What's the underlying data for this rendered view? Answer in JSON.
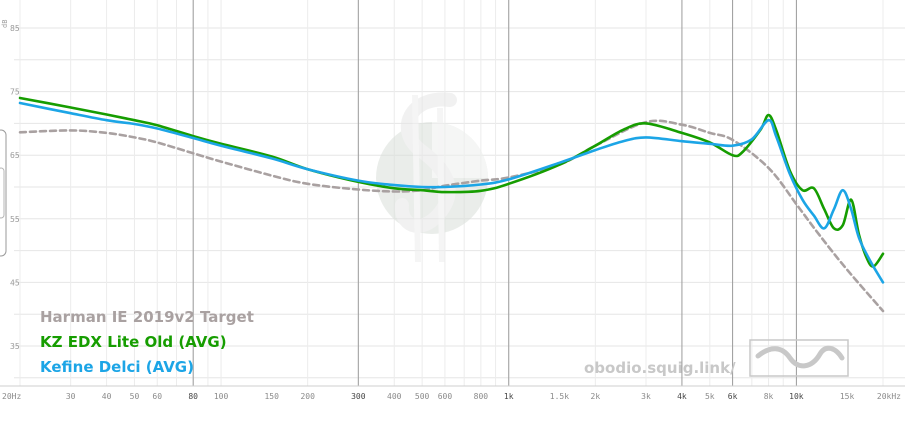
{
  "chart_data": {
    "type": "line",
    "ylabel": "dB",
    "ylim": [
      30,
      90
    ],
    "xlim": [
      20,
      20000
    ],
    "x_scale": "log",
    "grid": true,
    "legend_position": "bottom-left",
    "y_ticks": [
      35,
      45,
      55,
      65,
      75,
      85
    ],
    "x_ticks": [
      {
        "value": 20,
        "label": "20Hz",
        "major": false
      },
      {
        "value": 30,
        "label": "30",
        "major": false
      },
      {
        "value": 40,
        "label": "40",
        "major": false
      },
      {
        "value": 50,
        "label": "50",
        "major": false
      },
      {
        "value": 60,
        "label": "60",
        "major": false
      },
      {
        "value": 80,
        "label": "80",
        "major": true
      },
      {
        "value": 100,
        "label": "100",
        "major": false
      },
      {
        "value": 150,
        "label": "150",
        "major": false
      },
      {
        "value": 200,
        "label": "200",
        "major": false
      },
      {
        "value": 300,
        "label": "300",
        "major": true
      },
      {
        "value": 400,
        "label": "400",
        "major": false
      },
      {
        "value": 500,
        "label": "500",
        "major": false
      },
      {
        "value": 600,
        "label": "600",
        "major": false
      },
      {
        "value": 800,
        "label": "800",
        "major": false
      },
      {
        "value": 1000,
        "label": "1k",
        "major": true
      },
      {
        "value": 1500,
        "label": "1.5k",
        "major": false
      },
      {
        "value": 2000,
        "label": "2k",
        "major": false
      },
      {
        "value": 3000,
        "label": "3k",
        "major": false
      },
      {
        "value": 4000,
        "label": "4k",
        "major": true
      },
      {
        "value": 5000,
        "label": "5k",
        "major": false
      },
      {
        "value": 6000,
        "label": "6k",
        "major": true
      },
      {
        "value": 8000,
        "label": "8k",
        "major": false
      },
      {
        "value": 10000,
        "label": "10k",
        "major": true
      },
      {
        "value": 15000,
        "label": "15k",
        "major": false
      },
      {
        "value": 20000,
        "label": "20kHz",
        "major": false
      }
    ],
    "series": [
      {
        "name": "Harman IE 2019v2 Target",
        "color": "#a9a1a1",
        "dashed": true,
        "points": [
          [
            20,
            68.6
          ],
          [
            30,
            68.9
          ],
          [
            40,
            68.5
          ],
          [
            50,
            67.8
          ],
          [
            60,
            67
          ],
          [
            80,
            65.3
          ],
          [
            100,
            64
          ],
          [
            150,
            61.8
          ],
          [
            200,
            60.5
          ],
          [
            300,
            59.6
          ],
          [
            400,
            59.3
          ],
          [
            500,
            59.5
          ],
          [
            600,
            60.2
          ],
          [
            800,
            61
          ],
          [
            1000,
            61.5
          ],
          [
            1500,
            63.5
          ],
          [
            2000,
            66.5
          ],
          [
            3000,
            70.2
          ],
          [
            4000,
            69.8
          ],
          [
            5000,
            68.5
          ],
          [
            6000,
            67.4
          ],
          [
            8000,
            63
          ],
          [
            10000,
            57.3
          ],
          [
            12000,
            52.5
          ],
          [
            15000,
            47
          ],
          [
            20000,
            40.5
          ]
        ]
      },
      {
        "name": "KZ EDX Lite Old (AVG)",
        "color": "#169d00",
        "dashed": false,
        "points": [
          [
            20,
            74
          ],
          [
            30,
            72.5
          ],
          [
            40,
            71.4
          ],
          [
            50,
            70.5
          ],
          [
            60,
            69.7
          ],
          [
            80,
            68
          ],
          [
            100,
            66.8
          ],
          [
            150,
            64.8
          ],
          [
            200,
            62.8
          ],
          [
            300,
            60.8
          ],
          [
            400,
            59.8
          ],
          [
            500,
            59.5
          ],
          [
            600,
            59.2
          ],
          [
            800,
            59.4
          ],
          [
            1000,
            60.5
          ],
          [
            1500,
            63.5
          ],
          [
            2000,
            66.5
          ],
          [
            2500,
            69
          ],
          [
            3000,
            70
          ],
          [
            4000,
            68.5
          ],
          [
            5000,
            67
          ],
          [
            6000,
            65
          ],
          [
            6500,
            65.5
          ],
          [
            7500,
            69
          ],
          [
            8000,
            71.3
          ],
          [
            8500,
            69
          ],
          [
            9500,
            62.5
          ],
          [
            10500,
            59.5
          ],
          [
            11500,
            59.8
          ],
          [
            12500,
            56.5
          ],
          [
            13500,
            53.5
          ],
          [
            14500,
            54
          ],
          [
            15500,
            58
          ],
          [
            16500,
            52.5
          ],
          [
            17500,
            49
          ],
          [
            18500,
            47.5
          ],
          [
            20000,
            49.5
          ]
        ]
      },
      {
        "name": "Kefine Delci (AVG)",
        "color": "#1ca5e6",
        "dashed": false,
        "points": [
          [
            20,
            73.2
          ],
          [
            30,
            71.6
          ],
          [
            40,
            70.5
          ],
          [
            50,
            69.9
          ],
          [
            60,
            69.2
          ],
          [
            80,
            67.7
          ],
          [
            100,
            66.5
          ],
          [
            150,
            64.5
          ],
          [
            200,
            62.8
          ],
          [
            300,
            61
          ],
          [
            400,
            60.3
          ],
          [
            500,
            60
          ],
          [
            600,
            60
          ],
          [
            800,
            60.4
          ],
          [
            1000,
            61.2
          ],
          [
            1500,
            63.8
          ],
          [
            2000,
            65.8
          ],
          [
            2500,
            67.2
          ],
          [
            3000,
            67.8
          ],
          [
            4000,
            67.2
          ],
          [
            5000,
            66.8
          ],
          [
            6000,
            66.5
          ],
          [
            7000,
            67.5
          ],
          [
            8000,
            70.5
          ],
          [
            8500,
            68
          ],
          [
            9500,
            62
          ],
          [
            10500,
            58
          ],
          [
            11500,
            55.5
          ],
          [
            12500,
            53.5
          ],
          [
            13500,
            56.5
          ],
          [
            14500,
            59.5
          ],
          [
            15500,
            56.5
          ],
          [
            16500,
            52
          ],
          [
            18000,
            48.5
          ],
          [
            20000,
            45
          ]
        ]
      }
    ]
  },
  "watermark": {
    "text": "obodio.squig.link/"
  }
}
